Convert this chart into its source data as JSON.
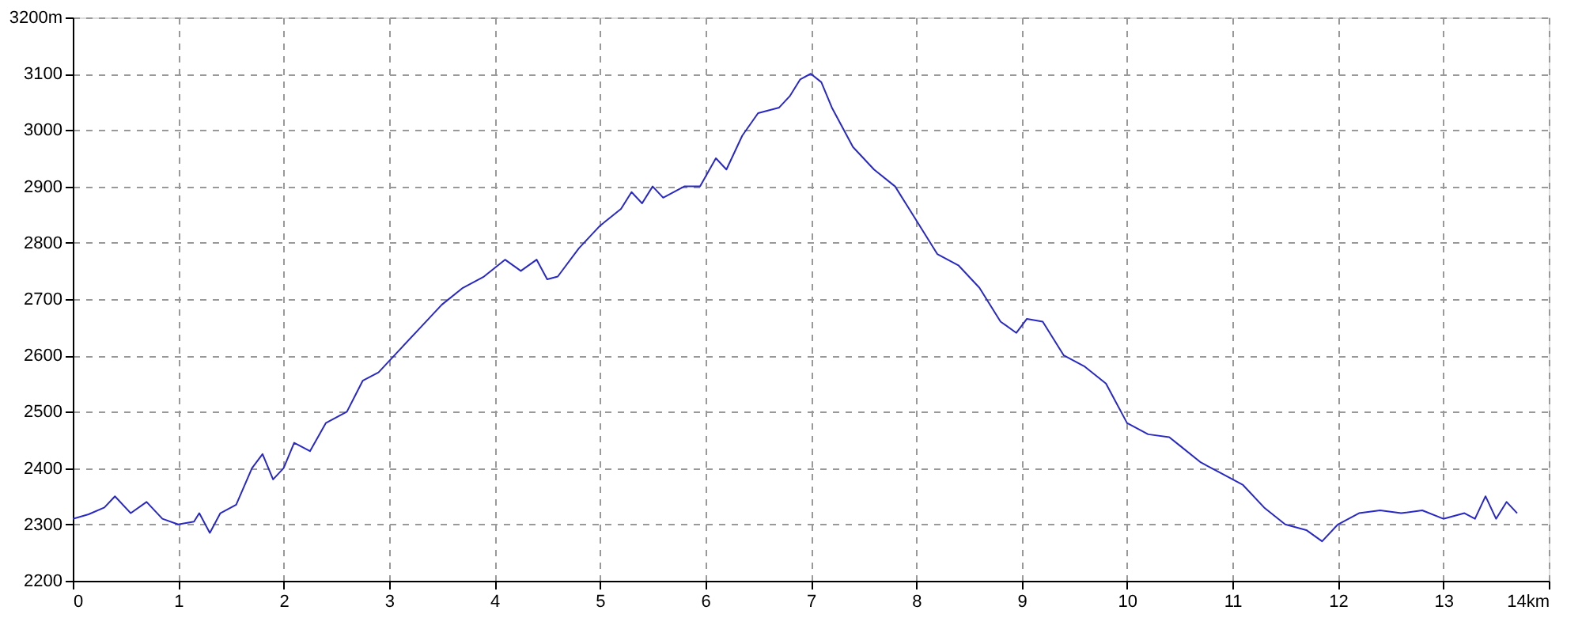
{
  "chart_data": {
    "type": "line",
    "x": [
      0,
      0.15,
      0.3,
      0.4,
      0.55,
      0.7,
      0.85,
      1.0,
      1.15,
      1.2,
      1.3,
      1.4,
      1.55,
      1.7,
      1.8,
      1.9,
      2.0,
      2.1,
      2.25,
      2.4,
      2.6,
      2.75,
      2.9,
      3.1,
      3.3,
      3.5,
      3.7,
      3.9,
      4.1,
      4.25,
      4.4,
      4.5,
      4.6,
      4.8,
      5.0,
      5.2,
      5.3,
      5.4,
      5.5,
      5.6,
      5.8,
      5.95,
      6.1,
      6.2,
      6.35,
      6.5,
      6.7,
      6.8,
      6.9,
      7.0,
      7.1,
      7.2,
      7.4,
      7.6,
      7.8,
      8.0,
      8.2,
      8.4,
      8.6,
      8.8,
      8.95,
      9.05,
      9.2,
      9.4,
      9.6,
      9.8,
      10.0,
      10.2,
      10.4,
      10.5,
      10.7,
      10.9,
      11.1,
      11.3,
      11.5,
      11.7,
      11.85,
      12.0,
      12.2,
      12.4,
      12.6,
      12.8,
      13.0,
      13.2,
      13.3,
      13.4,
      13.5,
      13.6,
      13.7
    ],
    "series": [
      {
        "color": "#2828c8",
        "values": [
          2310,
          2318,
          2330,
          2350,
          2320,
          2340,
          2310,
          2300,
          2305,
          2320,
          2285,
          2320,
          2335,
          2400,
          2425,
          2380,
          2400,
          2445,
          2430,
          2480,
          2500,
          2555,
          2570,
          2610,
          2650,
          2690,
          2720,
          2740,
          2770,
          2750,
          2770,
          2735,
          2740,
          2790,
          2830,
          2860,
          2890,
          2870,
          2900,
          2880,
          2900,
          2900,
          2950,
          2930,
          2990,
          3030,
          3040,
          3060,
          3090,
          3100,
          3085,
          3040,
          2970,
          2930,
          2900,
          2840,
          2780,
          2760,
          2720,
          2660,
          2640,
          2665,
          2660,
          2600,
          2580,
          2550,
          2480,
          2460,
          2455,
          2440,
          2410,
          2390,
          2370,
          2330,
          2300,
          2290,
          2270,
          2300,
          2320,
          2325,
          2320,
          2325,
          2310,
          2320,
          2310,
          2350,
          2310,
          2340,
          2320
        ]
      }
    ],
    "xlim": [
      0,
      14
    ],
    "xticks": [
      0,
      1,
      2,
      3,
      4,
      5,
      6,
      7,
      8,
      9,
      10,
      11,
      12,
      13,
      {
        "value": 14,
        "label": "14km"
      }
    ],
    "ylim": [
      2200,
      3200
    ],
    "yticks": [
      2200,
      2300,
      2400,
      2500,
      2600,
      2700,
      2800,
      2900,
      3000,
      3100,
      {
        "value": 3200,
        "label": "3200m"
      }
    ],
    "grid": true,
    "line_style": "solid",
    "marker": "none"
  }
}
